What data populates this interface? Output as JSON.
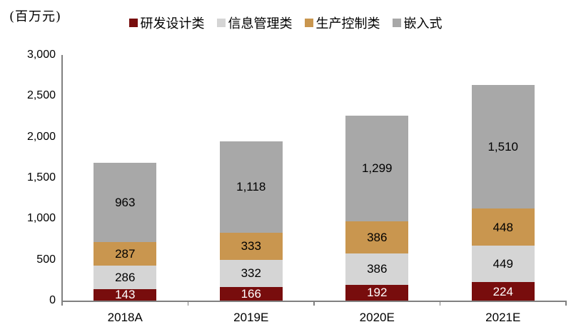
{
  "unit_label": "(百万元)",
  "chart_data": {
    "type": "bar",
    "stacked": true,
    "title": "",
    "unit": "百万元",
    "categories": [
      "2018A",
      "2019E",
      "2020E",
      "2021E"
    ],
    "series": [
      {
        "name": "研发设计类",
        "color": "#780D0D",
        "label_color": "#FFFFFF",
        "values": [
          143,
          166,
          192,
          224
        ]
      },
      {
        "name": "信息管理类",
        "color": "#D5D5D5",
        "label_color": "#000000",
        "values": [
          286,
          332,
          386,
          449
        ]
      },
      {
        "name": "生产控制类",
        "color": "#C9964F",
        "label_color": "#000000",
        "values": [
          287,
          333,
          386,
          448
        ]
      },
      {
        "name": "嵌入式",
        "color": "#A8A8A8",
        "label_color": "#000000",
        "values": [
          963,
          1118,
          1299,
          1510
        ]
      }
    ],
    "totals": [
      1679,
      1949,
      2263,
      2631
    ],
    "ylim": [
      0,
      3000
    ],
    "y_tick_step": 500,
    "y_tick_labels": [
      "0",
      "500",
      "1,000",
      "1,500",
      "2,000",
      "2,500",
      "3,000"
    ],
    "grid": false,
    "legend_position": "top",
    "value_labels": "inside-center",
    "axis_color": "#808080"
  }
}
